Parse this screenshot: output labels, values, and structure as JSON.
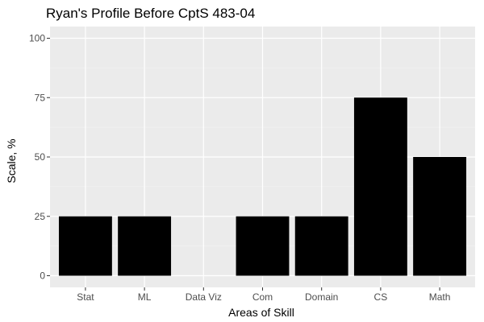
{
  "chart_data": {
    "type": "bar",
    "title": "Ryan's Profile Before CptS 483-04",
    "xlabel": "Areas of Skill",
    "ylabel": "Scale, %",
    "categories": [
      "Stat",
      "ML",
      "Data Viz",
      "Com",
      "Domain",
      "CS",
      "Math"
    ],
    "values": [
      25,
      25,
      0,
      25,
      25,
      75,
      50
    ],
    "ylim": [
      0,
      100
    ],
    "yticks": [
      0,
      25,
      50,
      75,
      100
    ],
    "grid": true,
    "legend": "none",
    "colors": {
      "panel_background": "#ebebeb",
      "grid_major": "#ffffff",
      "grid_minor": "#f5f5f5",
      "bar_fill": "#000000",
      "tick_text": "#4d4d4d",
      "tick_mark": "#333333"
    }
  }
}
